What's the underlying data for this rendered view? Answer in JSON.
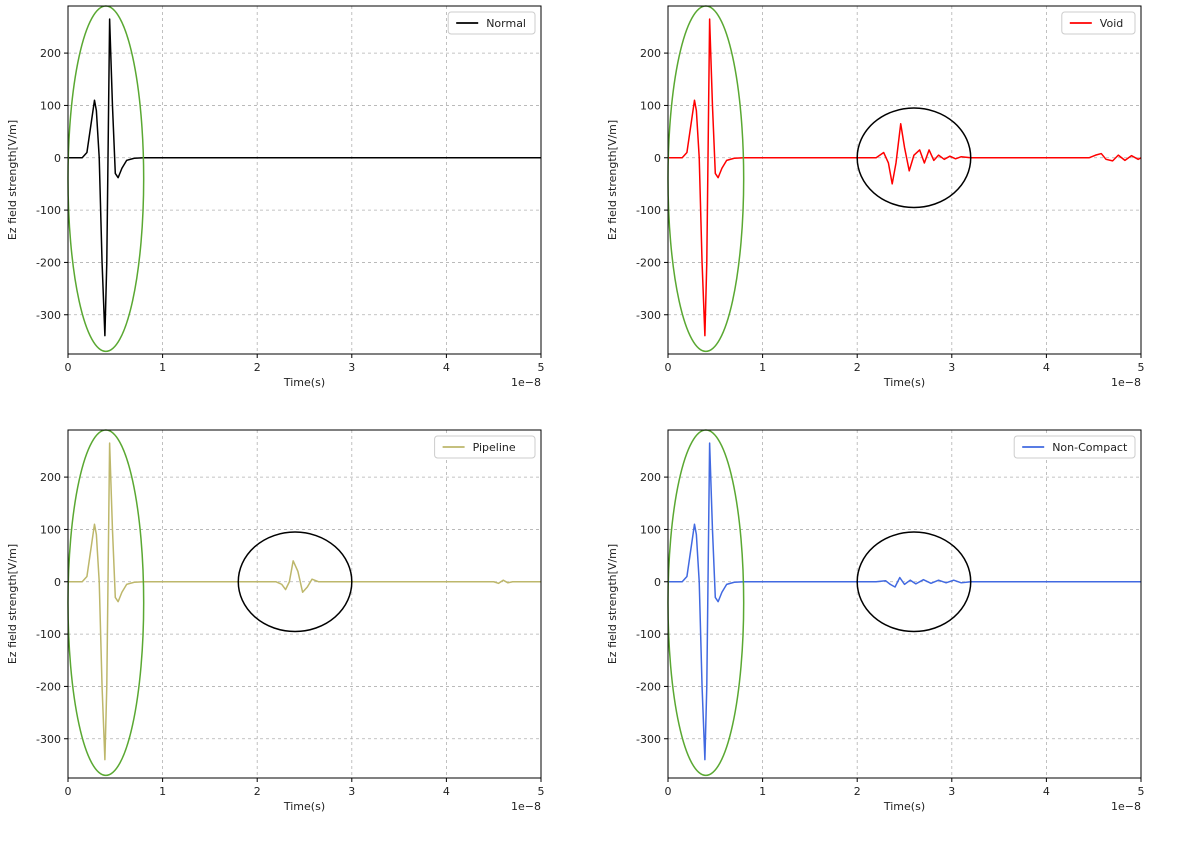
{
  "chart_data": [
    {
      "type": "line",
      "title": "",
      "xlabel": "Time(s)",
      "ylabel": "Ez field strength[V/m]",
      "x_offset_label": "1e−8",
      "xlim": [
        0,
        5
      ],
      "ylim": [
        -375,
        290
      ],
      "xticks": [
        0,
        1,
        2,
        3,
        4,
        5
      ],
      "yticks": [
        -300,
        -200,
        -100,
        0,
        100,
        200
      ],
      "grid": true,
      "legend_position": "top-right",
      "series": [
        {
          "name": "Normal",
          "color": "#000000",
          "x": [
            0,
            0.15,
            0.2,
            0.24,
            0.28,
            0.3,
            0.33,
            0.36,
            0.39,
            0.41,
            0.44,
            0.47,
            0.5,
            0.53,
            0.57,
            0.62,
            0.7,
            0.8,
            1.0,
            5.0
          ],
          "y": [
            0,
            0,
            10,
            60,
            110,
            90,
            0,
            -200,
            -340,
            -200,
            265,
            100,
            -30,
            -38,
            -20,
            -5,
            -1,
            0,
            0,
            0
          ]
        }
      ],
      "annotations": [
        {
          "shape": "ellipse",
          "color": "#5aa832",
          "cx": 0.4,
          "cy": -40,
          "rx": 0.4,
          "ry": 330
        }
      ]
    },
    {
      "type": "line",
      "title": "",
      "xlabel": "Time(s)",
      "ylabel": "Ez field strength[V/m]",
      "x_offset_label": "1e−8",
      "xlim": [
        0,
        5
      ],
      "ylim": [
        -375,
        290
      ],
      "xticks": [
        0,
        1,
        2,
        3,
        4,
        5
      ],
      "yticks": [
        -300,
        -200,
        -100,
        0,
        100,
        200
      ],
      "grid": true,
      "legend_position": "top-right",
      "series": [
        {
          "name": "Void",
          "color": "#ff0000",
          "x": [
            0,
            0.15,
            0.2,
            0.24,
            0.28,
            0.3,
            0.33,
            0.36,
            0.39,
            0.41,
            0.44,
            0.47,
            0.5,
            0.53,
            0.57,
            0.62,
            0.7,
            0.8,
            2.2,
            2.28,
            2.33,
            2.37,
            2.41,
            2.46,
            2.5,
            2.55,
            2.6,
            2.66,
            2.71,
            2.76,
            2.81,
            2.86,
            2.92,
            2.98,
            3.04,
            3.1,
            3.2,
            4.45,
            4.52,
            4.58,
            4.63,
            4.7,
            4.76,
            4.83,
            4.9,
            4.97,
            5.0
          ],
          "y": [
            0,
            0,
            10,
            60,
            110,
            90,
            0,
            -200,
            -340,
            -200,
            265,
            100,
            -30,
            -38,
            -20,
            -5,
            -1,
            0,
            0,
            10,
            -10,
            -50,
            -10,
            65,
            20,
            -25,
            5,
            15,
            -10,
            15,
            -5,
            5,
            -3,
            3,
            -2,
            2,
            0,
            0,
            5,
            8,
            -3,
            -6,
            5,
            -5,
            4,
            -3,
            0
          ]
        }
      ],
      "annotations": [
        {
          "shape": "ellipse",
          "color": "#5aa832",
          "cx": 0.4,
          "cy": -40,
          "rx": 0.4,
          "ry": 330
        },
        {
          "shape": "ellipse",
          "color": "#000000",
          "cx": 2.6,
          "cy": 0,
          "rx": 0.6,
          "ry": 95
        }
      ]
    },
    {
      "type": "line",
      "title": "",
      "xlabel": "Time(s)",
      "ylabel": "Ez field strength[V/m]",
      "x_offset_label": "1e−8",
      "xlim": [
        0,
        5
      ],
      "ylim": [
        -375,
        290
      ],
      "xticks": [
        0,
        1,
        2,
        3,
        4,
        5
      ],
      "yticks": [
        -300,
        -200,
        -100,
        0,
        100,
        200
      ],
      "grid": true,
      "legend_position": "top-right",
      "series": [
        {
          "name": "Pipeline",
          "color": "#bdb76b",
          "x": [
            0,
            0.15,
            0.2,
            0.24,
            0.28,
            0.3,
            0.33,
            0.36,
            0.39,
            0.41,
            0.44,
            0.47,
            0.5,
            0.53,
            0.57,
            0.62,
            0.7,
            0.8,
            2.2,
            2.26,
            2.3,
            2.34,
            2.38,
            2.43,
            2.48,
            2.53,
            2.58,
            2.65,
            2.75,
            4.5,
            4.55,
            4.6,
            4.65,
            4.7,
            5.0
          ],
          "y": [
            0,
            0,
            10,
            60,
            110,
            90,
            0,
            -200,
            -340,
            -200,
            265,
            100,
            -30,
            -38,
            -20,
            -5,
            -1,
            0,
            0,
            -5,
            -15,
            0,
            40,
            20,
            -20,
            -10,
            5,
            0,
            0,
            0,
            -3,
            3,
            -2,
            0,
            0
          ]
        }
      ],
      "annotations": [
        {
          "shape": "ellipse",
          "color": "#5aa832",
          "cx": 0.4,
          "cy": -40,
          "rx": 0.4,
          "ry": 330
        },
        {
          "shape": "ellipse",
          "color": "#000000",
          "cx": 2.4,
          "cy": 0,
          "rx": 0.6,
          "ry": 95
        }
      ]
    },
    {
      "type": "line",
      "title": "",
      "xlabel": "Time(s)",
      "ylabel": "Ez field strength[V/m]",
      "x_offset_label": "1e−8",
      "xlim": [
        0,
        5
      ],
      "ylim": [
        -375,
        290
      ],
      "xticks": [
        0,
        1,
        2,
        3,
        4,
        5
      ],
      "yticks": [
        -300,
        -200,
        -100,
        0,
        100,
        200
      ],
      "grid": true,
      "legend_position": "top-right",
      "series": [
        {
          "name": "Non-Compact",
          "color": "#4169e1",
          "x": [
            0,
            0.15,
            0.2,
            0.24,
            0.28,
            0.3,
            0.33,
            0.36,
            0.39,
            0.41,
            0.44,
            0.47,
            0.5,
            0.53,
            0.57,
            0.62,
            0.7,
            0.8,
            2.2,
            2.3,
            2.35,
            2.4,
            2.45,
            2.5,
            2.56,
            2.62,
            2.7,
            2.78,
            2.86,
            2.94,
            3.02,
            3.1,
            3.2,
            5.0
          ],
          "y": [
            0,
            0,
            10,
            60,
            110,
            90,
            0,
            -200,
            -340,
            -200,
            265,
            100,
            -30,
            -38,
            -20,
            -5,
            -1,
            0,
            0,
            2,
            -5,
            -10,
            8,
            -5,
            3,
            -4,
            4,
            -3,
            3,
            -2,
            3,
            -2,
            0,
            0
          ]
        }
      ],
      "annotations": [
        {
          "shape": "ellipse",
          "color": "#5aa832",
          "cx": 0.4,
          "cy": -40,
          "rx": 0.4,
          "ry": 330
        },
        {
          "shape": "ellipse",
          "color": "#000000",
          "cx": 2.6,
          "cy": 0,
          "rx": 0.6,
          "ry": 95
        }
      ]
    }
  ]
}
